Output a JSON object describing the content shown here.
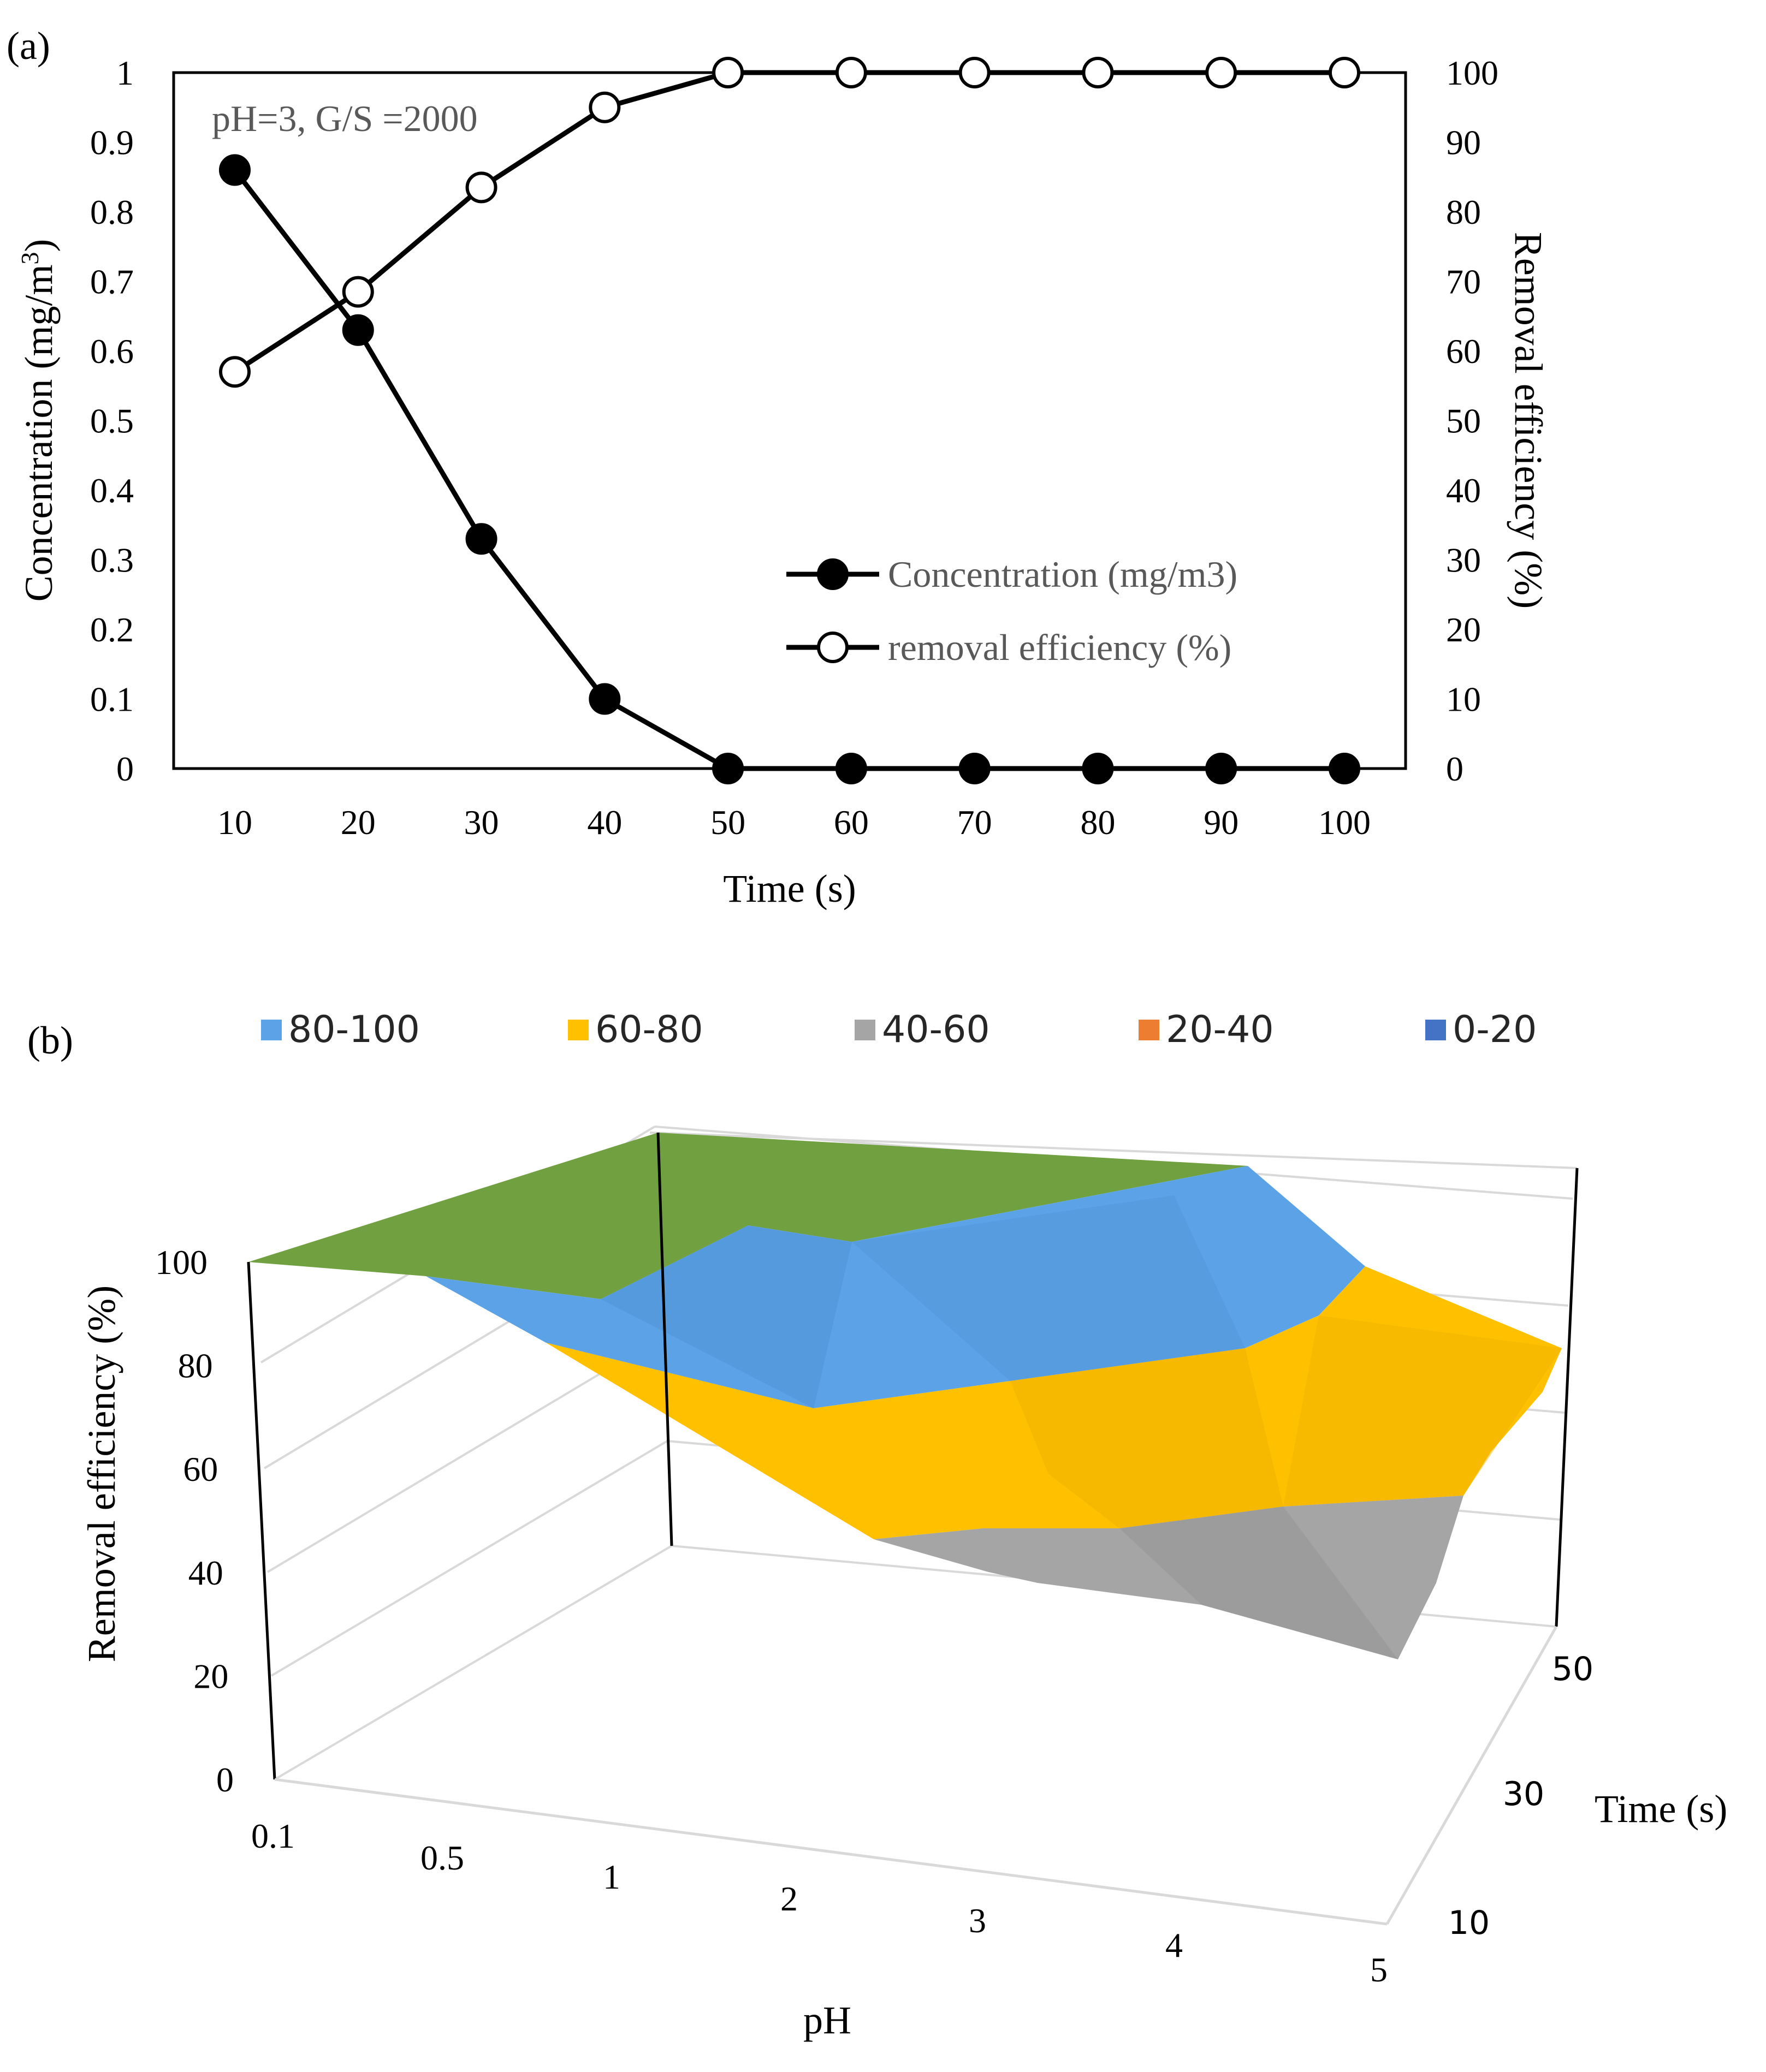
{
  "chart_data": [
    {
      "type": "line",
      "panel_label": "(a)",
      "annotation": "pH=3, G/S =2000",
      "xlabel": "Time (s)",
      "ylabel_left": "Concentration (mg/m",
      "ylabel_left_sup": "3",
      "ylabel_left_end": ")",
      "ylabel_right": "Removal efficiency (%)",
      "x": [
        10,
        20,
        30,
        40,
        50,
        60,
        70,
        80,
        90,
        100
      ],
      "ylim_left": [
        0,
        1
      ],
      "ylim_right": [
        0,
        100
      ],
      "yticks_left": [
        "0",
        "0.1",
        "0.2",
        "0.3",
        "0.4",
        "0.5",
        "0.6",
        "0.7",
        "0.8",
        "0.9",
        "1"
      ],
      "yticks_right": [
        "0",
        "10",
        "20",
        "30",
        "40",
        "50",
        "60",
        "70",
        "80",
        "90",
        "100"
      ],
      "xticks": [
        "10",
        "20",
        "30",
        "40",
        "50",
        "60",
        "70",
        "80",
        "90",
        "100"
      ],
      "series": [
        {
          "name": "Concentration (mg/m3)",
          "axis": "left",
          "marker": "filled-circle",
          "color": "#000000",
          "values": [
            0.86,
            0.63,
            0.33,
            0.1,
            0,
            0,
            0,
            0,
            0,
            0
          ]
        },
        {
          "name": "removal efficiency (%)",
          "axis": "right",
          "marker": "open-circle",
          "color": "#000000",
          "values": [
            57,
            68.5,
            83.5,
            95,
            100,
            100,
            100,
            100,
            100,
            100
          ]
        }
      ]
    },
    {
      "type": "surface",
      "panel_label": "(b)",
      "zlabel": "Removal efficiency (%)",
      "xlabel": "pH",
      "ylabel": "Time (s)",
      "x_categories": [
        "0.1",
        "0.5",
        "1",
        "2",
        "3",
        "4",
        "5"
      ],
      "y_ticks": [
        "10",
        "30",
        "50"
      ],
      "zlim": [
        0,
        100
      ],
      "zticks": [
        "0",
        "20",
        "40",
        "60",
        "80",
        "100"
      ],
      "legend": [
        {
          "label": "80-100",
          "color": "#5BA3E6"
        },
        {
          "label": "60-80",
          "color": "#FFC000"
        },
        {
          "label": "40-60",
          "color": "#A5A5A5"
        },
        {
          "label": "20-40",
          "color": "#ED7D31"
        },
        {
          "label": "0-20",
          "color": "#4472C4"
        }
      ],
      "surface_colors": {
        "top": "#70A03F",
        "high": "#5BA3E6",
        "mid": "#FFC000",
        "low": "#A5A5A5"
      }
    }
  ]
}
